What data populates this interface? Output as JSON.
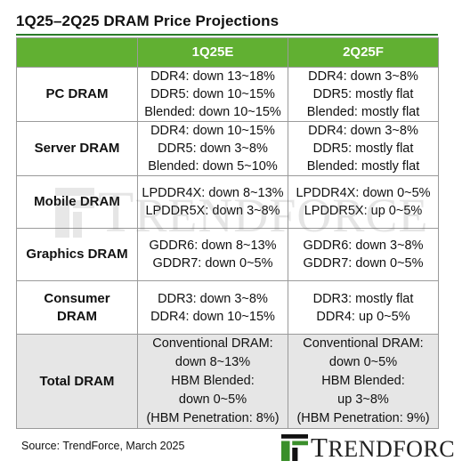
{
  "title": "1Q25–2Q25 DRAM Price Projections",
  "columns": [
    "",
    "1Q25E",
    "2Q25F"
  ],
  "rows": [
    {
      "label": [
        "PC DRAM"
      ],
      "q1": [
        "DDR4: down 13~18%",
        "DDR5: down 10~15%",
        "Blended: down 10~15%"
      ],
      "q2": [
        "DDR4: down 3~8%",
        "DDR5: mostly flat",
        "Blended: mostly flat"
      ]
    },
    {
      "label": [
        "Server DRAM"
      ],
      "q1": [
        "DDR4: down 10~15%",
        "DDR5: down 3~8%",
        "Blended: down 5~10%"
      ],
      "q2": [
        "DDR4: down 3~8%",
        "DDR5: mostly flat",
        "Blended: mostly flat"
      ]
    },
    {
      "label": [
        "Mobile DRAM"
      ],
      "q1": [
        "LPDDR4X: down 8~13%",
        "LPDDR5X: down 3~8%"
      ],
      "q2": [
        "LPDDR4X: down 0~5%",
        "LPDDR5X: up 0~5%"
      ]
    },
    {
      "label": [
        "Graphics DRAM"
      ],
      "q1": [
        "GDDR6: down 8~13%",
        "GDDR7: down 0~5%"
      ],
      "q2": [
        "GDDR6: down 3~8%",
        "GDDR7: down 0~5%"
      ]
    },
    {
      "label": [
        "Consumer",
        "DRAM"
      ],
      "q1": [
        "DDR3: down 3~8%",
        "DDR4: down 10~15%"
      ],
      "q2": [
        "DDR3: mostly flat",
        "DDR4: up 0~5%"
      ]
    },
    {
      "label": [
        "Total DRAM"
      ],
      "q1": [
        "Conventional DRAM:",
        "down 8~13%",
        "HBM Blended:",
        "down 0~5%",
        "(HBM Penetration: 8%)"
      ],
      "q2": [
        "Conventional DRAM:",
        "down 0~5%",
        "HBM Blended:",
        "up 3~8%",
        "(HBM Penetration: 9%)"
      ]
    }
  ],
  "source": "Source: TrendForce, March 2025",
  "watermark": {
    "first": "T",
    "rest": "RENDFORCE"
  },
  "logo": {
    "first": "T",
    "rest": "RENDFORCE"
  },
  "colors": {
    "header_bg": "#61b032",
    "rule": "#2a7a2a",
    "total_bg": "#e6e6e6",
    "logo_green": "#3a8f2a"
  },
  "icons": [
    "trendforce-logo-icon",
    "trendforce-watermark-icon"
  ]
}
